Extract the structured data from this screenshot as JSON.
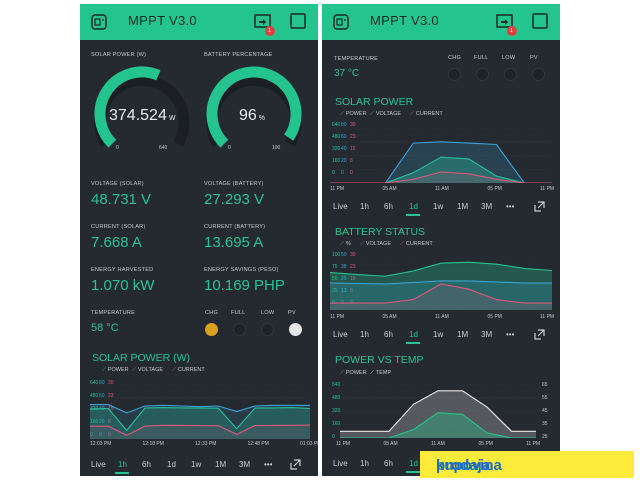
{
  "app": {
    "title": "MPPT V3.0",
    "notification_count": "1"
  },
  "colors": {
    "accent": "#24c48e",
    "voltage": "#3aa3d8",
    "current": "#e0567a",
    "temp": "#e8e8e8",
    "led_chg": "#d9a020",
    "led_pv": "#e6e6e6"
  },
  "left": {
    "solar_power": {
      "label": "SOLAR POWER (W)",
      "value": "374.524",
      "unit": "W",
      "min": "0",
      "max": "640",
      "fraction": 0.585
    },
    "battery_pct": {
      "label": "BATTERY PERCENTAGE",
      "value": "96",
      "unit": "%",
      "min": "0",
      "max": "100",
      "fraction": 0.96
    },
    "voltage_solar": {
      "label": "VOLTAGE (SOLAR)",
      "value": "48.731 V"
    },
    "voltage_battery": {
      "label": "VOLTAGE (BATTERY)",
      "value": "27.293 V"
    },
    "current_solar": {
      "label": "CURRENT (SOLAR)",
      "value": "7.668 A"
    },
    "current_battery": {
      "label": "CURRENT (BATTERY)",
      "value": "13.695 A"
    },
    "energy_harvested": {
      "label": "ENERGY HARVESTED",
      "value": "1.070 kW"
    },
    "energy_savings": {
      "label": "ENERGY SAVINGS (PESO)",
      "value": "10.169 PHP"
    },
    "temperature": {
      "label": "TEMPERATURE",
      "value": "58 °C"
    },
    "leds": [
      {
        "label": "CHG",
        "on": true,
        "color": "#d9a020"
      },
      {
        "label": "FULL",
        "on": false
      },
      {
        "label": "LOW",
        "on": false
      },
      {
        "label": "PV",
        "on": true,
        "color": "#e6e6e6"
      }
    ],
    "chart_title": "SOLAR POWER (W)",
    "legend": [
      "POWER",
      "VOLTAGE",
      "CURRENT"
    ],
    "yticks": [
      [
        "640",
        "80",
        "30"
      ],
      [
        "480",
        "60",
        "23"
      ],
      [
        "320",
        "40",
        "15"
      ],
      [
        "160",
        "20",
        "8"
      ],
      [
        "0",
        "0",
        "0"
      ]
    ],
    "xticks": [
      "12:03 PM",
      "12:18 PM",
      "12:33 PM",
      "12:48 PM",
      "01:03 PM"
    ],
    "tabs": [
      "Live",
      "1h",
      "6h",
      "1d",
      "1w",
      "1M",
      "3M",
      "•••"
    ],
    "active_tab": "1h"
  },
  "right": {
    "temperature": {
      "label": "TEMPERATURE",
      "value": "37 °C"
    },
    "led_labels": [
      "CHG",
      "FULL",
      "LOW",
      "PV"
    ],
    "tabs": [
      "Live",
      "1h",
      "6h",
      "1d",
      "1w",
      "1M",
      "3M",
      "•••"
    ],
    "active_tab": "1d",
    "solar_power": {
      "title": "SOLAR POWER",
      "legend": [
        "POWER",
        "VOLTAGE",
        "CURRENT"
      ],
      "yticks": [
        [
          "640",
          "80",
          "30"
        ],
        [
          "480",
          "60",
          "23"
        ],
        [
          "320",
          "40",
          "15"
        ],
        [
          "160",
          "20",
          "8"
        ],
        [
          "0",
          "0",
          "0"
        ]
      ],
      "xticks": [
        "11 PM",
        "05 AM",
        "11 AM",
        "05 PM",
        "11 PM"
      ]
    },
    "battery_status": {
      "title": "BATTERY STATUS",
      "legend": [
        "%",
        "VOLTAGE",
        "CURRENT"
      ],
      "yticks": [
        [
          "100",
          "50",
          "30"
        ],
        [
          "75",
          "38",
          "23"
        ],
        [
          "50",
          "25",
          "15"
        ],
        [
          "25",
          "13",
          "8"
        ],
        [
          "0",
          "0",
          "0"
        ]
      ],
      "xticks": [
        "11 PM",
        "05 AM",
        "11 AM",
        "05 PM",
        "11 PM"
      ]
    },
    "power_vs_temp": {
      "title": "POWER VS TEMP",
      "legend": [
        "POWER",
        "TEMP"
      ],
      "yleft": [
        "640",
        "480",
        "320",
        "160",
        "0"
      ],
      "yright": [
        "65",
        "55",
        "45",
        "35",
        "25"
      ],
      "xticks": [
        "11 PM",
        "05 AM",
        "11 AM",
        "05 PM",
        "11 PM"
      ]
    }
  },
  "watermark": {
    "word1": "kupovina",
    "sep": "i",
    "word2": "prodaja"
  },
  "chart_data": [
    {
      "type": "line",
      "x": [
        "12:03 PM",
        "12:08 PM",
        "12:13 PM",
        "12:18 PM",
        "12:23 PM",
        "12:28 PM",
        "12:33 PM",
        "12:38 PM",
        "12:43 PM",
        "12:48 PM",
        "12:53 PM",
        "12:58 PM",
        "01:03 PM"
      ],
      "series": [
        {
          "name": "POWER",
          "values": [
            350,
            355,
            100,
            360,
            365,
            362,
            360,
            358,
            120,
            360,
            362,
            365,
            355
          ]
        },
        {
          "name": "VOLTAGE",
          "values": [
            50,
            50,
            38,
            48,
            49,
            48,
            47,
            48,
            40,
            48,
            49,
            49,
            49
          ]
        },
        {
          "name": "CURRENT",
          "values": [
            7,
            7,
            2,
            7,
            7.5,
            7.4,
            7.3,
            7.2,
            2.5,
            7.3,
            7.4,
            7.5,
            7.6
          ]
        }
      ],
      "ylim": [
        0,
        640
      ]
    },
    {
      "type": "area",
      "x": [
        "11 PM",
        "02 AM",
        "05 AM",
        "08 AM",
        "11 AM",
        "02 PM",
        "05 PM",
        "08 PM",
        "11 PM"
      ],
      "series": [
        {
          "name": "POWER",
          "values": [
            0,
            0,
            0,
            120,
            300,
            280,
            80,
            0,
            0
          ]
        },
        {
          "name": "VOLTAGE",
          "values": [
            0,
            0,
            0,
            58,
            60,
            58,
            56,
            0,
            0
          ]
        },
        {
          "name": "CURRENT",
          "values": [
            0,
            0,
            0,
            2,
            6,
            5,
            2,
            0,
            0
          ]
        }
      ],
      "ylim": [
        0,
        640
      ]
    },
    {
      "type": "area",
      "x": [
        "11 PM",
        "02 AM",
        "05 AM",
        "08 AM",
        "11 AM",
        "02 PM",
        "05 PM",
        "08 PM",
        "11 PM"
      ],
      "series": [
        {
          "name": "%",
          "values": [
            72,
            68,
            65,
            75,
            90,
            92,
            88,
            80,
            76
          ]
        },
        {
          "name": "VOLTAGE",
          "values": [
            26,
            25.5,
            25,
            26.5,
            28,
            28,
            27,
            26,
            26
          ]
        },
        {
          "name": "CURRENT",
          "values": [
            4,
            4,
            4,
            6,
            15,
            12,
            6,
            4,
            4
          ]
        }
      ],
      "ylim": [
        0,
        100
      ]
    },
    {
      "type": "area",
      "x": [
        "11 PM",
        "02 AM",
        "05 AM",
        "08 AM",
        "11 AM",
        "02 PM",
        "05 PM",
        "08 PM",
        "11 PM"
      ],
      "series": [
        {
          "name": "POWER",
          "values": [
            0,
            0,
            0,
            100,
            300,
            280,
            60,
            0,
            0
          ]
        },
        {
          "name": "TEMP",
          "values": [
            30,
            30,
            30,
            50,
            60,
            60,
            48,
            30,
            30
          ]
        }
      ],
      "ylim": [
        0,
        640
      ]
    }
  ]
}
